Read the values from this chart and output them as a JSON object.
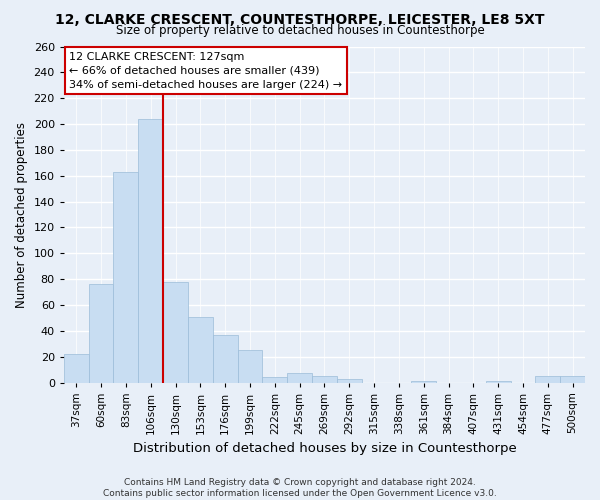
{
  "title1": "12, CLARKE CRESCENT, COUNTESTHORPE, LEICESTER, LE8 5XT",
  "title2": "Size of property relative to detached houses in Countesthorpe",
  "xlabel": "Distribution of detached houses by size in Countesthorpe",
  "ylabel": "Number of detached properties",
  "footer": "Contains HM Land Registry data © Crown copyright and database right 2024.\nContains public sector information licensed under the Open Government Licence v3.0.",
  "categories": [
    "37sqm",
    "60sqm",
    "83sqm",
    "106sqm",
    "130sqm",
    "153sqm",
    "176sqm",
    "199sqm",
    "222sqm",
    "245sqm",
    "269sqm",
    "292sqm",
    "315sqm",
    "338sqm",
    "361sqm",
    "384sqm",
    "407sqm",
    "431sqm",
    "454sqm",
    "477sqm",
    "500sqm"
  ],
  "values": [
    22,
    76,
    163,
    204,
    78,
    51,
    37,
    25,
    4,
    7,
    5,
    3,
    0,
    0,
    1,
    0,
    0,
    1,
    0,
    5,
    5
  ],
  "bar_color": "#c8ddf2",
  "bar_edge_color": "#9bbcd8",
  "marker_color": "#cc0000",
  "annotation_text": "12 CLARKE CRESCENT: 127sqm\n← 66% of detached houses are smaller (439)\n34% of semi-detached houses are larger (224) →",
  "annotation_box_color": "#ffffff",
  "annotation_box_edge": "#cc0000",
  "bg_color": "#e8eff8",
  "grid_color": "#ffffff",
  "ylim": [
    0,
    260
  ],
  "yticks": [
    0,
    20,
    40,
    60,
    80,
    100,
    120,
    140,
    160,
    180,
    200,
    220,
    240,
    260
  ],
  "vline_x": 3.5
}
